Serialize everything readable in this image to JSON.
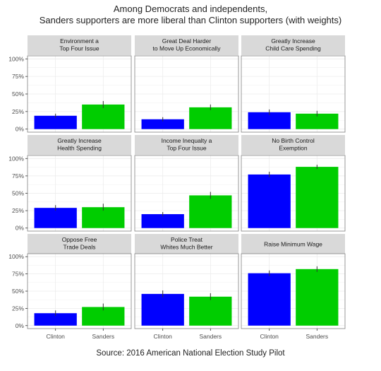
{
  "title_line1": "Among Democrats and independents,",
  "title_line2": "Sanders supporters are more liberal than Clinton supporters (with weights)",
  "source": "Source: 2016 American National Election Study Pilot",
  "colors": {
    "clinton": "#0000ff",
    "sanders": "#00cd00",
    "strip": "#d9d9d9",
    "panel_border": "#7f7f7f",
    "grid": "#ebebeb",
    "error_bar": "#333333"
  },
  "chart_data": {
    "type": "bar",
    "layout": "facet 3x3",
    "categories": [
      "Clinton",
      "Sanders"
    ],
    "y_ticks": [
      "0%",
      "25%",
      "50%",
      "75%",
      "100%"
    ],
    "ylim": [
      0,
      1
    ],
    "xlabel": "",
    "ylabel": "",
    "legend": "none",
    "grid": true,
    "panels": [
      {
        "title": [
          "Environment a",
          "Top Four Issue"
        ],
        "values": [
          0.19,
          0.35
        ],
        "errors": [
          0.03,
          0.05
        ]
      },
      {
        "title": [
          "Great Deal Harder",
          "to Move Up Economically"
        ],
        "values": [
          0.14,
          0.31
        ],
        "errors": [
          0.03,
          0.04
        ]
      },
      {
        "title": [
          "Greatly Increase",
          "Child Care Spending"
        ],
        "values": [
          0.24,
          0.22
        ],
        "errors": [
          0.04,
          0.04
        ]
      },
      {
        "title": [
          "Greatly Increase",
          "Health Spending"
        ],
        "values": [
          0.29,
          0.3
        ],
        "errors": [
          0.04,
          0.05
        ]
      },
      {
        "title": [
          "Income Inequalty a",
          "Top Four Issue"
        ],
        "values": [
          0.2,
          0.47
        ],
        "errors": [
          0.03,
          0.05
        ]
      },
      {
        "title": [
          "No Birth Control",
          "Exemption"
        ],
        "values": [
          0.77,
          0.88
        ],
        "errors": [
          0.04,
          0.03
        ]
      },
      {
        "title": [
          "Oppose Free",
          "Trade Deals"
        ],
        "values": [
          0.18,
          0.27
        ],
        "errors": [
          0.04,
          0.05
        ]
      },
      {
        "title": [
          "Police Treat",
          "Whites Much Better"
        ],
        "values": [
          0.46,
          0.42
        ],
        "errors": [
          0.05,
          0.05
        ]
      },
      {
        "title": [
          "Raise Minimum Wage"
        ],
        "values": [
          0.76,
          0.82
        ],
        "errors": [
          0.04,
          0.04
        ]
      }
    ]
  }
}
